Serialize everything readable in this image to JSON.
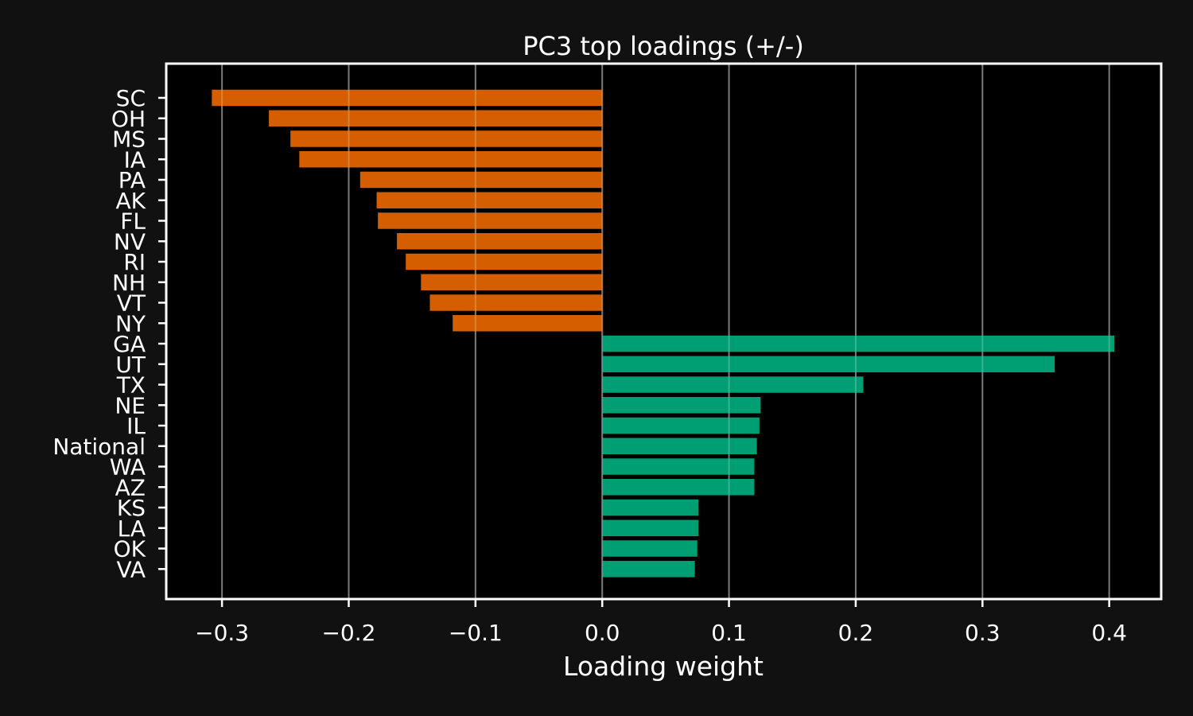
{
  "colors": {
    "background": "#111111",
    "plot_background": "#000000",
    "negative": "#d55e00",
    "positive": "#009e73",
    "text": "#ffffff",
    "grid": "#555555"
  },
  "chart_data": {
    "type": "bar",
    "orientation": "horizontal",
    "title": "PC3 top loadings (+/-)",
    "xlabel": "Loading weight",
    "ylabel": "",
    "xlim": [
      -0.344,
      0.441
    ],
    "x_ticks": [
      -0.3,
      -0.2,
      -0.1,
      0.0,
      0.1,
      0.2,
      0.3,
      0.4
    ],
    "x_tick_labels": [
      "−0.3",
      "−0.2",
      "−0.1",
      "0.0",
      "0.1",
      "0.2",
      "0.3",
      "0.4"
    ],
    "grid": "x",
    "categories": [
      "SC",
      "OH",
      "MS",
      "IA",
      "PA",
      "AK",
      "FL",
      "NV",
      "RI",
      "NH",
      "VT",
      "NY",
      "GA",
      "UT",
      "TX",
      "NE",
      "IL",
      "National",
      "WA",
      "AZ",
      "KS",
      "LA",
      "OK",
      "VA"
    ],
    "values": [
      -0.308,
      -0.263,
      -0.246,
      -0.239,
      -0.191,
      -0.178,
      -0.177,
      -0.162,
      -0.155,
      -0.143,
      -0.136,
      -0.118,
      0.404,
      0.357,
      0.206,
      0.125,
      0.124,
      0.122,
      0.12,
      0.12,
      0.076,
      0.076,
      0.075,
      0.073
    ]
  }
}
